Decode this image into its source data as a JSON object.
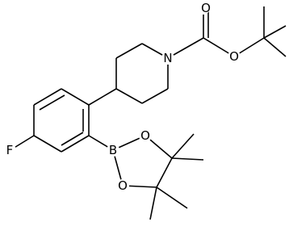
{
  "atoms": [
    "O",
    "O",
    "N",
    "F",
    "B",
    "O",
    "O"
  ]
}
